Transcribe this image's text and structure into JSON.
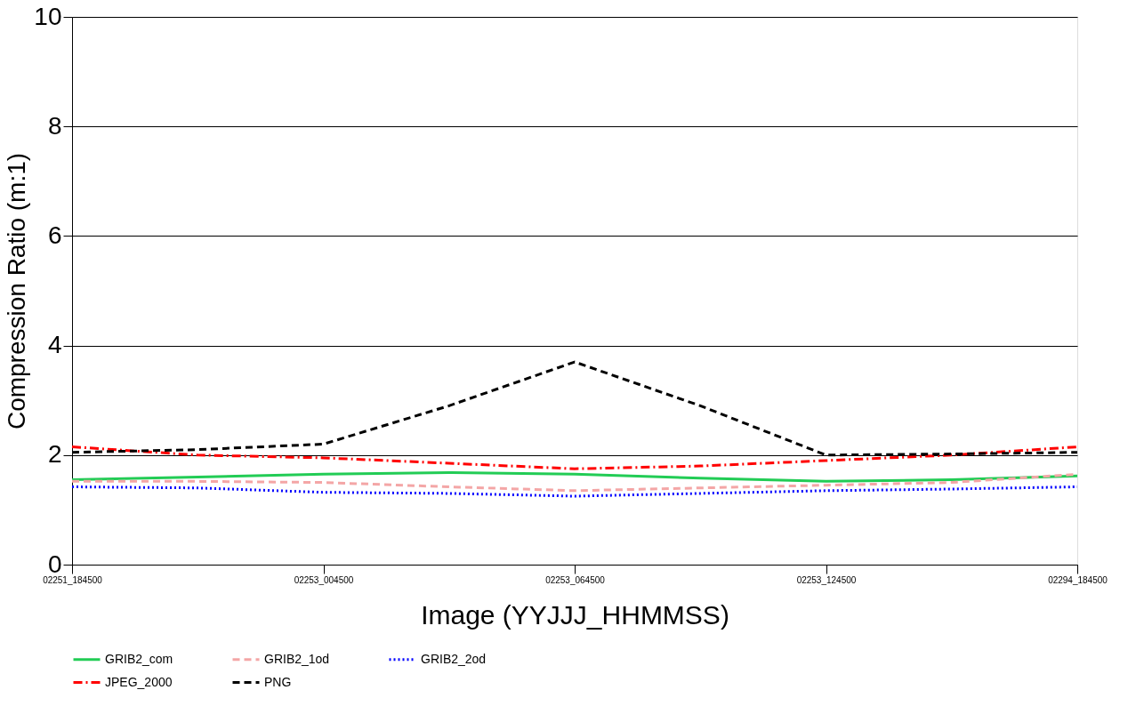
{
  "chart_data": {
    "type": "line",
    "xlabel": "Image (YYJJJ_HHMMSS)",
    "ylabel": "Compression Ratio (m:1)",
    "categories": [
      "02251_184500",
      null,
      "02253_004500",
      null,
      "02253_064500",
      null,
      "02253_124500",
      null,
      "02294_184500"
    ],
    "ylim": [
      0,
      10
    ],
    "yticks": [
      0,
      2,
      4,
      6,
      8,
      10
    ],
    "grid": "y",
    "legend": "bottom",
    "marker": "none",
    "series": [
      {
        "name": "GRIB2_com",
        "color": "#22cc55",
        "line_style": "solid",
        "values": [
          1.55,
          1.6,
          1.65,
          1.68,
          1.65,
          1.58,
          1.52,
          1.55,
          1.62
        ]
      },
      {
        "name": "GRIB2_1od",
        "color": "#f4a6a6",
        "line_style": "dashed",
        "values": [
          1.52,
          1.52,
          1.5,
          1.42,
          1.35,
          1.4,
          1.45,
          1.5,
          1.65
        ]
      },
      {
        "name": "GRIB2_2od",
        "color": "#0000ff",
        "line_style": "dotted",
        "values": [
          1.42,
          1.4,
          1.32,
          1.3,
          1.25,
          1.3,
          1.35,
          1.38,
          1.42
        ]
      },
      {
        "name": "JPEG_2000",
        "color": "#ff0000",
        "line_style": "dashdot",
        "values": [
          2.15,
          2.0,
          1.95,
          1.85,
          1.75,
          1.8,
          1.9,
          2.0,
          2.15
        ]
      },
      {
        "name": "PNG",
        "color": "#000000",
        "line_style": "dashed",
        "values": [
          2.05,
          2.1,
          2.2,
          2.9,
          3.7,
          2.9,
          2.0,
          2.02,
          2.05
        ]
      }
    ]
  }
}
